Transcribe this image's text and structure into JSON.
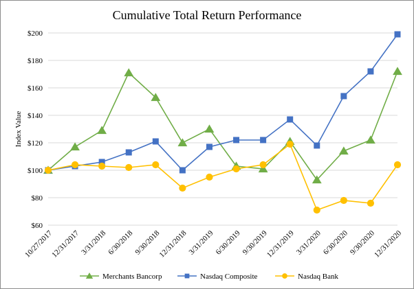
{
  "chart_data": {
    "type": "line",
    "title": "Cumulative Total Return Performance",
    "xlabel": "",
    "ylabel": "Index Value",
    "categories": [
      "10/27/2017",
      "12/31/2017",
      "3/31/2018",
      "6/30/2018",
      "9/30/2018",
      "12/31/2018",
      "3/31/2019",
      "6/30/2019",
      "9/30/2019",
      "12/31/2019",
      "3/31/2020",
      "6/30/2020",
      "9/30/2020",
      "12/31/2020"
    ],
    "yticks": [
      "$60",
      "$80",
      "$100",
      "$120",
      "$140",
      "$160",
      "$180",
      "$200"
    ],
    "ylim": [
      60,
      200
    ],
    "grid": true,
    "legend_position": "bottom",
    "series": [
      {
        "name": "Merchants Bancorp",
        "color": "#70AD47",
        "marker": "triangle",
        "values": [
          100,
          117,
          129,
          171,
          153,
          120,
          130,
          103,
          101,
          121,
          93,
          114,
          122,
          172
        ]
      },
      {
        "name": "Nasdaq Composite",
        "color": "#4472C4",
        "marker": "square",
        "values": [
          100,
          103,
          106,
          113,
          121,
          100,
          117,
          122,
          122,
          137,
          118,
          154,
          172,
          199
        ]
      },
      {
        "name": "Nasdaq Bank",
        "color": "#FFC000",
        "marker": "circle",
        "values": [
          100,
          104,
          103,
          102,
          104,
          87,
          95,
          101,
          104,
          119,
          71,
          78,
          76,
          104
        ]
      }
    ]
  }
}
